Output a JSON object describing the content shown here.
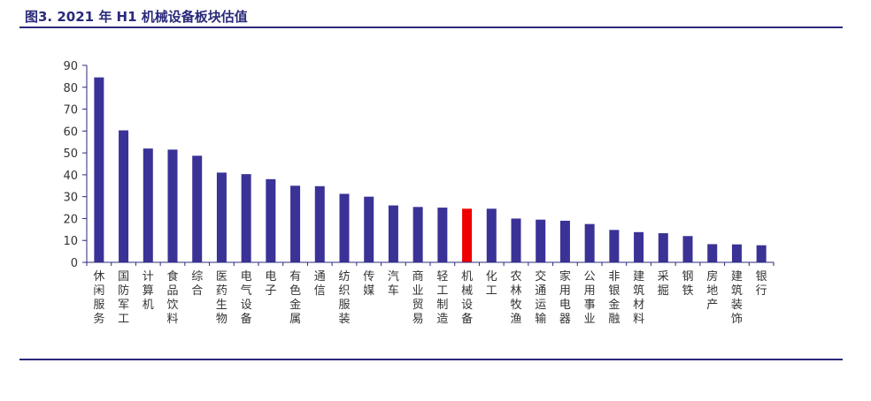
{
  "title": "图3. 2021 年 H1 机械设备板块估值",
  "chart_data": {
    "type": "bar",
    "categories": [
      "休闲服务",
      "国防军工",
      "计算机",
      "食品饮料",
      "综合",
      "医药生物",
      "电气设备",
      "电子",
      "有色金属",
      "通信",
      "纺织服装",
      "传媒",
      "汽车",
      "商业贸易",
      "轻工制造",
      "机械设备",
      "化工",
      "农林牧渔",
      "交通运输",
      "家用电器",
      "公用事业",
      "非银金融",
      "建筑材料",
      "采掘",
      "钢铁",
      "房地产",
      "建筑装饰",
      "银行"
    ],
    "values": [
      84.5,
      60.3,
      52,
      51.5,
      48.7,
      41,
      40.3,
      38,
      35,
      34.8,
      31.3,
      30,
      26,
      25.3,
      25,
      24.5,
      24.5,
      20,
      19.5,
      19,
      17.5,
      14.8,
      13.8,
      13.3,
      12,
      8.3,
      8.2,
      7.8
    ],
    "highlight_category": "机械设备",
    "ylim": [
      0,
      90
    ],
    "yticks": [
      0,
      10,
      20,
      30,
      40,
      50,
      60,
      70,
      80,
      90
    ],
    "bar_color": "#3a3296",
    "highlight_color": "#ee0000",
    "axis_color": "#2a2a7a",
    "xlabel": "",
    "ylabel": ""
  }
}
